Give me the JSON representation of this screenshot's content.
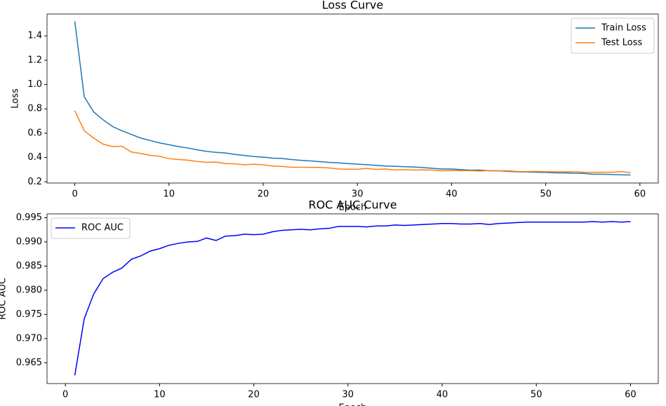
{
  "chart_data": [
    {
      "type": "line",
      "title": "Loss Curve",
      "xlabel": "Epoch",
      "ylabel": "Loss",
      "x": [
        0,
        1,
        2,
        3,
        4,
        5,
        6,
        7,
        8,
        9,
        10,
        11,
        12,
        13,
        14,
        15,
        16,
        17,
        18,
        19,
        20,
        21,
        22,
        23,
        24,
        25,
        26,
        27,
        28,
        29,
        30,
        31,
        32,
        33,
        34,
        35,
        36,
        37,
        38,
        39,
        40,
        41,
        42,
        43,
        44,
        45,
        46,
        47,
        48,
        49,
        50,
        51,
        52,
        53,
        54,
        55,
        56,
        57,
        58,
        59
      ],
      "series": [
        {
          "name": "Train Loss",
          "color": "#1f77b4",
          "values": [
            1.52,
            0.9,
            0.775,
            0.71,
            0.655,
            0.62,
            0.59,
            0.56,
            0.54,
            0.52,
            0.505,
            0.49,
            0.478,
            0.463,
            0.45,
            0.442,
            0.437,
            0.425,
            0.417,
            0.408,
            0.403,
            0.395,
            0.392,
            0.383,
            0.377,
            0.372,
            0.366,
            0.36,
            0.356,
            0.35,
            0.345,
            0.341,
            0.336,
            0.33,
            0.328,
            0.324,
            0.322,
            0.317,
            0.311,
            0.305,
            0.305,
            0.3,
            0.296,
            0.297,
            0.29,
            0.29,
            0.286,
            0.282,
            0.281,
            0.279,
            0.277,
            0.274,
            0.273,
            0.27,
            0.269,
            0.262,
            0.262,
            0.26,
            0.258,
            0.256
          ]
        },
        {
          "name": "Test Loss",
          "color": "#ff7f0e",
          "values": [
            0.785,
            0.62,
            0.56,
            0.51,
            0.49,
            0.493,
            0.445,
            0.433,
            0.418,
            0.41,
            0.39,
            0.383,
            0.378,
            0.367,
            0.36,
            0.362,
            0.35,
            0.348,
            0.34,
            0.345,
            0.34,
            0.33,
            0.326,
            0.32,
            0.32,
            0.318,
            0.318,
            0.314,
            0.305,
            0.304,
            0.303,
            0.31,
            0.302,
            0.305,
            0.297,
            0.3,
            0.297,
            0.298,
            0.297,
            0.29,
            0.293,
            0.292,
            0.292,
            0.289,
            0.292,
            0.291,
            0.29,
            0.285,
            0.284,
            0.285,
            0.283,
            0.282,
            0.283,
            0.282,
            0.279,
            0.278,
            0.279,
            0.279,
            0.284,
            0.275
          ]
        }
      ],
      "xlim": [
        -2.95,
        61.95
      ],
      "xticks": [
        0,
        10,
        20,
        30,
        40,
        50,
        60
      ],
      "ylim": [
        0.19,
        1.58
      ],
      "yticks": [
        0.2,
        0.4,
        0.6,
        0.8,
        {
          "value": 1,
          "label": "1.0"
        },
        1.2,
        1.4
      ],
      "legend": "upper right",
      "grid": false
    },
    {
      "type": "line",
      "title": "ROC AUC Curve",
      "xlabel": "Epoch",
      "ylabel": "ROC AUC",
      "x": [
        1,
        2,
        3,
        4,
        5,
        6,
        7,
        8,
        9,
        10,
        11,
        12,
        13,
        14,
        15,
        16,
        17,
        18,
        19,
        20,
        21,
        22,
        23,
        24,
        25,
        26,
        27,
        28,
        29,
        30,
        31,
        32,
        33,
        34,
        35,
        36,
        37,
        38,
        39,
        40,
        41,
        42,
        43,
        44,
        45,
        46,
        47,
        48,
        49,
        50,
        51,
        52,
        53,
        54,
        55,
        56,
        57,
        58,
        59,
        60
      ],
      "series": [
        {
          "name": "ROC AUC",
          "color": "#0000ff",
          "values": [
            0.9624,
            0.9741,
            0.9792,
            0.9824,
            0.9837,
            0.9846,
            0.9864,
            0.9871,
            0.9881,
            0.9886,
            0.9893,
            0.9897,
            0.99,
            0.9901,
            0.9908,
            0.9903,
            0.9912,
            0.9913,
            0.9916,
            0.9915,
            0.9916,
            0.9921,
            0.9924,
            0.9925,
            0.9926,
            0.9925,
            0.9927,
            0.9928,
            0.9932,
            0.9932,
            0.9932,
            0.9931,
            0.9933,
            0.9933,
            0.9935,
            0.9934,
            0.9935,
            0.9936,
            0.9937,
            0.9938,
            0.9938,
            0.9937,
            0.9937,
            0.9938,
            0.9936,
            0.9938,
            0.9939,
            0.994,
            0.9941,
            0.9941,
            0.9941,
            0.9941,
            0.9941,
            0.9941,
            0.9941,
            0.9942,
            0.9941,
            0.9942,
            0.9941,
            0.9942
          ]
        }
      ],
      "xlim": [
        -1.95,
        62.95
      ],
      "xticks": [
        0,
        10,
        20,
        30,
        40,
        50,
        60
      ],
      "ylim": [
        0.9607,
        0.9958
      ],
      "yticks": [
        0.965,
        {
          "value": 0.97,
          "label": "0.970"
        },
        0.975,
        {
          "value": 0.98,
          "label": "0.980"
        },
        0.985,
        {
          "value": 0.99,
          "label": "0.990"
        },
        0.995
      ],
      "legend": "upper left",
      "grid": false
    }
  ]
}
